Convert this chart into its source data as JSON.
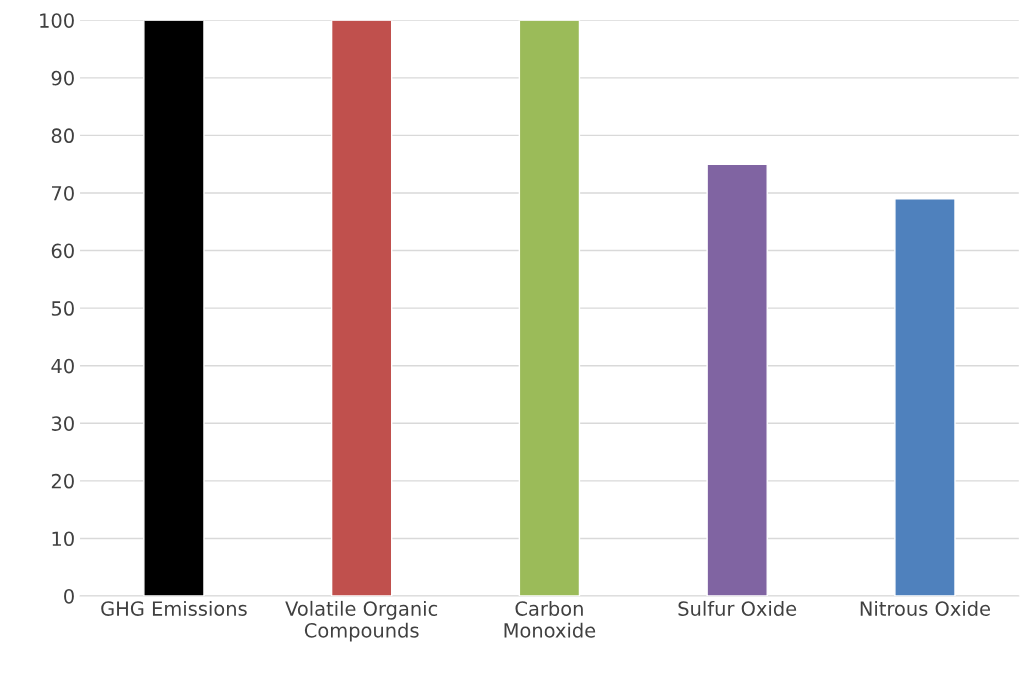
{
  "chart_data": {
    "type": "bar",
    "categories": [
      "GHG Emissions",
      "Volatile Organic\nCompounds",
      "Carbon\nMonoxide",
      "Sulfur Oxide",
      "Nitrous Oxide"
    ],
    "values": [
      100,
      100,
      100,
      75,
      69
    ],
    "colors": [
      "#000000",
      "#c0504d",
      "#9bbb59",
      "#8064a2",
      "#4f81bd"
    ],
    "ylim": [
      0,
      100
    ],
    "yticks": [
      0,
      10,
      20,
      30,
      40,
      50,
      60,
      70,
      80,
      90,
      100
    ],
    "grid": "y",
    "legend": false
  }
}
